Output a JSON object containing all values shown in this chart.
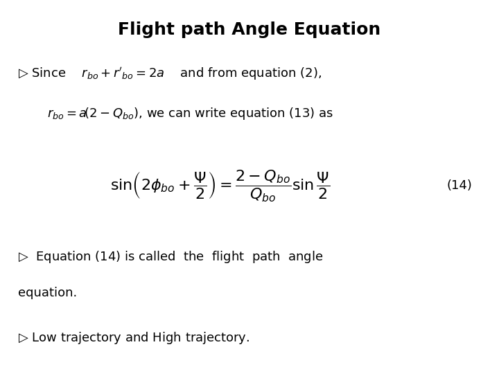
{
  "title": "Flight path Angle Equation",
  "title_fontsize": 18,
  "background_color": "#ffffff",
  "text_color": "#000000",
  "eq_label": "(14)",
  "bullet3b_text": "equation.",
  "body_fontsize": 13,
  "eq_fontsize": 16
}
